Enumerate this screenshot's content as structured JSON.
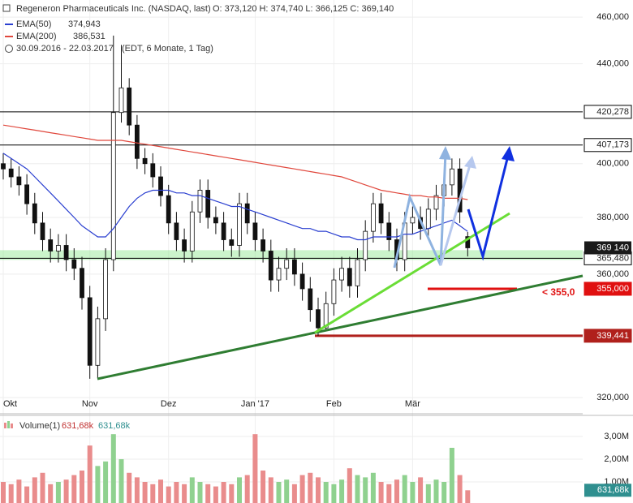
{
  "chart_data": {
    "type": "candlestick",
    "title": "Regeneron Pharmaceuticals Inc. (NASDAQ, last)",
    "ohlc_text": "O: 373,120   H: 374,740   L: 366,125   C: 369,140",
    "period": "30.09.2016 - 22.03.2017",
    "period_note": "(EDT, 6 Monate, 1 Tag)",
    "log_scale": true,
    "grid": true,
    "categories": [
      "Okt",
      null,
      null,
      null,
      null,
      null,
      null,
      null,
      null,
      null,
      null,
      "Nov",
      null,
      null,
      null,
      null,
      null,
      null,
      null,
      null,
      null,
      "Dez",
      null,
      null,
      null,
      null,
      null,
      null,
      null,
      null,
      null,
      null,
      "Jan '17",
      null,
      null,
      null,
      null,
      null,
      null,
      null,
      null,
      null,
      "Feb",
      null,
      null,
      null,
      null,
      null,
      null,
      null,
      null,
      null,
      "Mär",
      null,
      null,
      null,
      null,
      null,
      null,
      null
    ],
    "open": [
      400,
      398,
      395,
      392,
      385,
      378,
      372,
      368,
      370,
      365,
      362,
      352,
      330,
      345,
      365,
      420,
      430,
      415,
      402,
      400,
      395,
      388,
      378,
      372,
      368,
      382,
      390,
      380,
      378,
      372,
      370,
      385,
      378,
      372,
      368,
      358,
      362,
      365,
      360,
      355,
      348,
      342,
      350,
      358,
      362,
      356,
      365,
      375,
      385,
      378,
      372,
      365,
      378,
      380,
      376,
      383,
      388,
      392,
      398,
      373.12
    ],
    "high": [
      404,
      402,
      399,
      396,
      389,
      382,
      376,
      374,
      374,
      369,
      366,
      356,
      349,
      369,
      452,
      448,
      434,
      419,
      406,
      404,
      399,
      392,
      382,
      376,
      386,
      394,
      394,
      384,
      382,
      376,
      389,
      389,
      382,
      376,
      372,
      366,
      369,
      369,
      364,
      359,
      352,
      354,
      362,
      366,
      366,
      369,
      379,
      389,
      389,
      382,
      376,
      382,
      384,
      384,
      387,
      392,
      396,
      402,
      402,
      374.74
    ],
    "low": [
      394,
      391,
      388,
      381,
      374,
      368,
      364,
      364,
      361,
      358,
      348,
      325.8,
      326,
      341,
      361,
      416,
      411,
      398,
      396,
      391,
      384,
      374,
      368,
      364,
      364,
      378,
      376,
      374,
      368,
      366,
      366,
      374,
      368,
      364,
      354,
      354,
      358,
      356,
      351,
      344,
      339.44,
      341,
      346,
      354,
      352,
      352,
      361,
      371,
      374,
      368,
      361,
      361,
      374,
      372,
      372,
      379,
      384,
      388,
      378,
      366.125
    ],
    "close": [
      398,
      395,
      392,
      385,
      378,
      372,
      368,
      370,
      365,
      362,
      352,
      330,
      345,
      365,
      420,
      430,
      415,
      402,
      400,
      395,
      388,
      378,
      372,
      368,
      382,
      390,
      380,
      378,
      372,
      370,
      385,
      378,
      372,
      368,
      358,
      362,
      365,
      360,
      355,
      348,
      342,
      350,
      358,
      362,
      356,
      365,
      375,
      385,
      378,
      372,
      365,
      378,
      380,
      376,
      383,
      388,
      392,
      398,
      382,
      369.14
    ],
    "up_color": "#ffffff",
    "down_color": "#111111",
    "series": [
      {
        "name": "EMA(50)",
        "color": "#2a3fd0",
        "last_value": {
          "value": 374.943,
          "label": "374,943"
        },
        "values": [
          404,
          402,
          400,
          398,
          395,
          392,
          389,
          386,
          383,
          380,
          377,
          375,
          373,
          373,
          376,
          380,
          384,
          387,
          389,
          390,
          390,
          390,
          389,
          389,
          388,
          388,
          387,
          386,
          385,
          384,
          384,
          383,
          382,
          381,
          380,
          379,
          378,
          377,
          376,
          376,
          375,
          375,
          374,
          373,
          373,
          372,
          372,
          373,
          373,
          373,
          373,
          374,
          374,
          375,
          376,
          377,
          378,
          379,
          377,
          374.943
        ]
      },
      {
        "name": "EMA(200)",
        "color": "#e0473c",
        "last_value": {
          "value": 386.531,
          "label": "386,531"
        },
        "values": [
          415,
          414.5,
          414,
          413.5,
          413,
          412.5,
          412,
          411.5,
          411,
          410.5,
          410,
          409.5,
          409,
          409,
          409,
          409,
          408.5,
          408,
          407.5,
          407,
          406.5,
          406,
          405.5,
          405,
          404.5,
          404,
          403.5,
          403,
          402.5,
          402,
          401.5,
          401,
          400.5,
          400,
          399.5,
          399,
          398.5,
          398,
          397.5,
          397,
          396.5,
          396,
          395.5,
          395,
          394,
          393,
          392,
          391,
          390,
          389.5,
          389,
          388.5,
          388,
          388,
          387.5,
          387.5,
          387,
          387,
          387,
          386.531
        ]
      }
    ],
    "ylim": [
      315.1,
      467.6
    ],
    "yticks": [
      {
        "value": 460,
        "label": "460,000"
      },
      {
        "value": 440,
        "label": "440,000"
      },
      {
        "value": 400,
        "label": "400,000"
      },
      {
        "value": 380,
        "label": "380,000"
      },
      {
        "value": 360,
        "label": "360,000"
      },
      {
        "value": 320,
        "label": "320,000"
      }
    ],
    "levels": [
      {
        "value": 420.278,
        "label": "420,278",
        "color": "#000000"
      },
      {
        "value": 407.173,
        "label": "407,173",
        "color": "#000000"
      },
      {
        "value": 365.48,
        "label": "365,480",
        "color": "#000000"
      },
      {
        "value": 355,
        "label": "355,000",
        "color": "#e01010"
      },
      {
        "value": 339.441,
        "label": "339,441",
        "color": "#b0201c"
      }
    ],
    "last_price": {
      "value": 369.14,
      "label": "369 140"
    },
    "annotation": "< 355,0",
    "volume": {
      "name": "Volume(1)",
      "up_color": "#8fd18f",
      "down_color": "#e98c8c",
      "values": [
        1.0,
        0.9,
        1.1,
        0.8,
        1.2,
        1.4,
        0.9,
        1.0,
        1.1,
        1.3,
        1.5,
        2.6,
        1.7,
        1.9,
        3.1,
        2.0,
        1.4,
        1.2,
        1.0,
        0.9,
        1.1,
        0.8,
        1.0,
        0.9,
        1.2,
        1.0,
        0.9,
        0.8,
        1.0,
        0.9,
        1.2,
        1.3,
        3.1,
        1.5,
        1.2,
        1.0,
        1.1,
        0.9,
        1.3,
        1.4,
        1.2,
        1.0,
        0.9,
        1.1,
        1.6,
        1.3,
        1.2,
        1.4,
        1.0,
        0.9,
        1.1,
        1.3,
        1.0,
        1.2,
        0.9,
        1.1,
        1.0,
        2.5,
        1.3,
        0.63168
      ],
      "last": {
        "value": 0.63168,
        "label": "631,68k"
      },
      "ylim": [
        0,
        3.82
      ],
      "yticks": [
        {
          "value": 3,
          "label": "3,00M"
        },
        {
          "value": 2,
          "label": "2,00M"
        },
        {
          "value": 1,
          "label": "1,00M"
        }
      ]
    }
  }
}
